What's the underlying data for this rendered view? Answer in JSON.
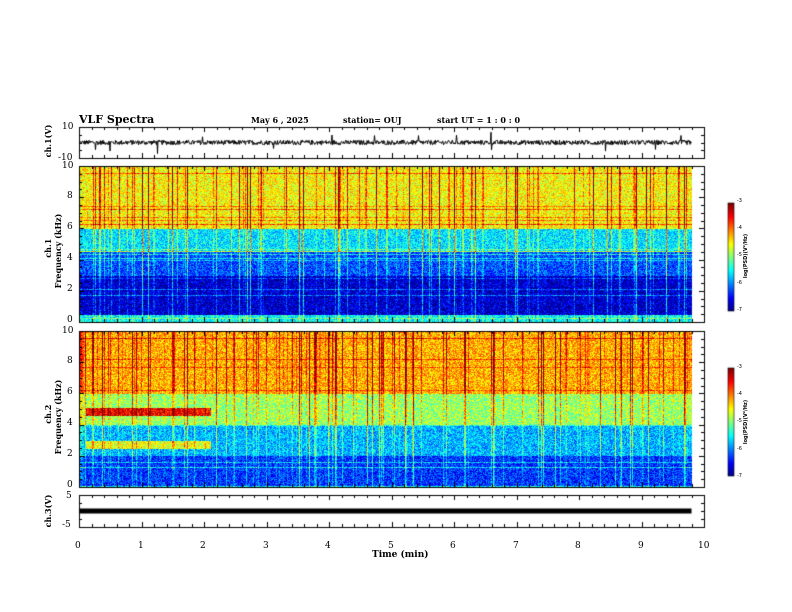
{
  "header": {
    "title": "VLF Spectra",
    "date": "May 6 , 2025",
    "station": "station= OUJ",
    "start": "start UT = 1 : 0 : 0"
  },
  "chart_data": [
    {
      "type": "line",
      "name": "ch1-waveform",
      "ylabel": "ch.1(V)",
      "ylim": [
        -10,
        10
      ],
      "yticks": [
        "10",
        "-10"
      ],
      "xlim": [
        0,
        10
      ],
      "description_values": {
        "baseline": 0,
        "typical_noise_amplitude": 1.5,
        "spike_amplitude": 6
      },
      "color": "#000000"
    },
    {
      "type": "heatmap",
      "name": "ch1-spectrogram",
      "ylabel": "ch.1\nFrequency (kHz)",
      "ylim": [
        0,
        10
      ],
      "yticks": [
        "0",
        "2",
        "4",
        "6",
        "8",
        "10"
      ],
      "xlim": [
        0,
        10
      ],
      "time_coverage_min": [
        0,
        9.8
      ],
      "colorbar": {
        "label": "log(PSD)(V²/Hz)",
        "range": [
          -7,
          -3
        ],
        "ticks": [
          "-3",
          "-4",
          "-5",
          "-6",
          "-7"
        ]
      },
      "background_band_levels": [
        {
          "fmin": 0,
          "fmax": 0.5,
          "level": -5.5
        },
        {
          "fmin": 0.5,
          "fmax": 3,
          "level": -6.7
        },
        {
          "fmin": 3,
          "fmax": 4.5,
          "level": -6.2
        },
        {
          "fmin": 4.5,
          "fmax": 6,
          "level": -5.6
        },
        {
          "fmin": 6,
          "fmax": 10,
          "level": -4.5
        }
      ]
    },
    {
      "type": "heatmap",
      "name": "ch2-spectrogram",
      "ylabel": "ch.2\nFrequency (kHz)",
      "ylim": [
        0,
        10
      ],
      "yticks": [
        "0",
        "2",
        "4",
        "6",
        "8",
        "10"
      ],
      "xlim": [
        0,
        10
      ],
      "time_coverage_min": [
        0,
        9.8
      ],
      "colorbar": {
        "label": "log(PSD)(V²/Hz)",
        "range": [
          -7,
          -3
        ],
        "ticks": [
          "-3",
          "-4",
          "-5",
          "-6",
          "-7"
        ]
      },
      "background_band_levels": [
        {
          "fmin": 0,
          "fmax": 2,
          "level": -6.3
        },
        {
          "fmin": 2,
          "fmax": 4,
          "level": -5.8
        },
        {
          "fmin": 4,
          "fmax": 6,
          "level": -4.9
        },
        {
          "fmin": 6,
          "fmax": 10,
          "level": -4.2
        }
      ],
      "features": [
        {
          "tmin": 0.1,
          "tmax": 2.1,
          "fmin": 4.6,
          "fmax": 5.1,
          "level": -3.5
        },
        {
          "tmin": 0.1,
          "tmax": 2.1,
          "fmin": 2.5,
          "fmax": 3.0,
          "level": -4.6
        }
      ]
    },
    {
      "type": "line",
      "name": "ch3-waveform",
      "ylabel": "ch.3(V)",
      "ylim": [
        -5,
        5
      ],
      "yticks": [
        "5",
        "-5"
      ],
      "xlim": [
        0,
        10
      ],
      "description_values": {
        "constant_level": 0
      },
      "color": "#000000"
    }
  ],
  "x_axis": {
    "label": "Time (min)",
    "ticks": [
      "0",
      "1",
      "2",
      "3",
      "4",
      "5",
      "6",
      "7",
      "8",
      "9",
      "10"
    ]
  }
}
